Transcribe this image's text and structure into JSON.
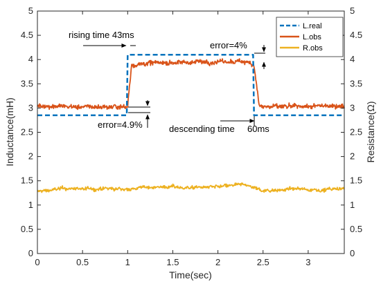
{
  "chart_data": {
    "type": "line",
    "title": "",
    "xlabel": "Time(sec)",
    "ylabel_left": "Inductance(mH)",
    "ylabel_right": "Resistance(Ω)",
    "xlim": [
      0,
      3.4
    ],
    "ylim_left": [
      0,
      5
    ],
    "ylim_right": [
      0,
      5
    ],
    "x_ticks": [
      0,
      0.5,
      1,
      1.5,
      2,
      2.5,
      3
    ],
    "x_tick_labels": [
      "0",
      "0.5",
      "1",
      "1.5",
      "2",
      "2.5",
      "3"
    ],
    "y_ticks": [
      0,
      0.5,
      1,
      1.5,
      2,
      2.5,
      3,
      3.5,
      4,
      4.5,
      5
    ],
    "y_tick_labels": [
      "0",
      "0.5",
      "1",
      "1.5",
      "2",
      "2.5",
      "3",
      "3.5",
      "4",
      "4.5",
      "5"
    ],
    "grid": false,
    "legend_position": "top-right",
    "colors": {
      "L_real": "#0072bd",
      "L_obs": "#d95319",
      "R_obs": "#edb120",
      "axes": "#262626"
    },
    "series": [
      {
        "name": "L.real",
        "style": "dashed",
        "x": [
          0,
          0.99,
          1.0,
          2.39,
          2.4,
          3.4
        ],
        "y": [
          2.85,
          2.85,
          4.1,
          4.1,
          2.85,
          2.85
        ]
      },
      {
        "name": "L.obs",
        "style": "solid-noisy",
        "x": [
          0,
          0.5,
          1.0,
          1.043,
          1.3,
          2.0,
          2.35,
          2.4,
          2.46,
          2.8,
          3.4
        ],
        "y": [
          3.05,
          3.02,
          3.03,
          3.9,
          3.93,
          3.96,
          3.95,
          3.9,
          3.03,
          3.02,
          3.05
        ]
      },
      {
        "name": "R.obs",
        "style": "solid-noisy",
        "x": [
          0,
          0.3,
          0.7,
          1.0,
          1.3,
          1.7,
          2.0,
          2.3,
          2.5,
          2.8,
          3.1,
          3.4
        ],
        "y": [
          1.28,
          1.34,
          1.33,
          1.33,
          1.38,
          1.36,
          1.37,
          1.42,
          1.3,
          1.33,
          1.32,
          1.33
        ]
      }
    ],
    "annotations": {
      "rising": "rising time  43ms",
      "error_top": "error=4%",
      "error_bottom": "error=4.9%",
      "descending": "descending time",
      "descending_ms": "60ms"
    }
  }
}
